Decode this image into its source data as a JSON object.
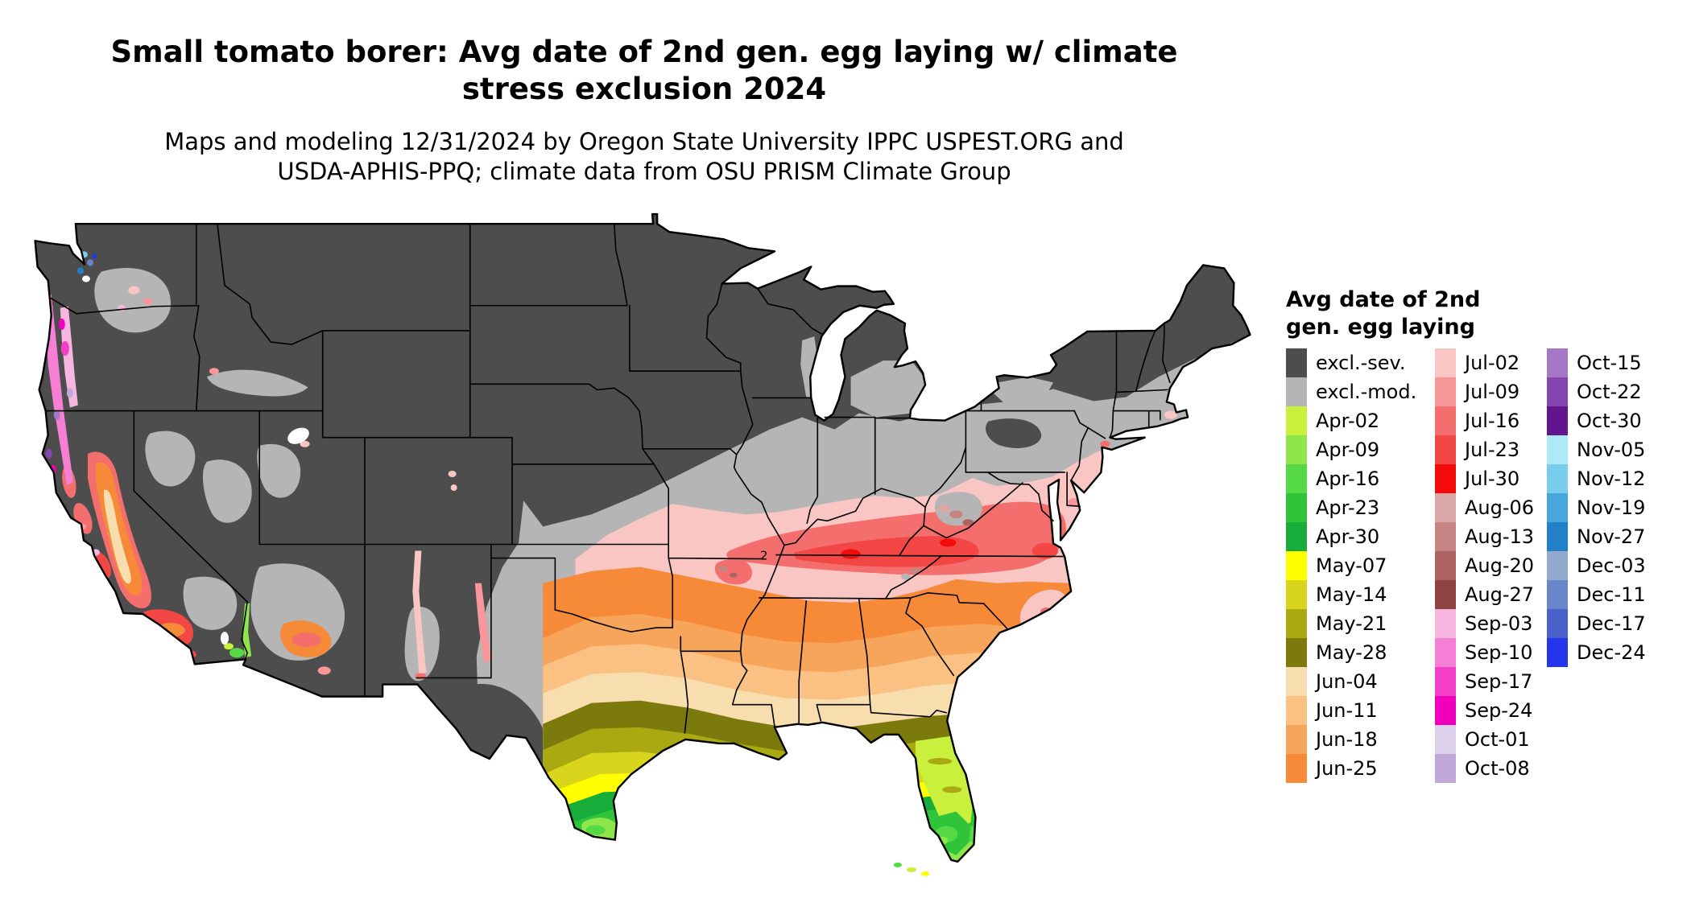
{
  "header": {
    "title_line1": "Small tomato borer: Avg date of 2nd gen. egg laying w/ climate",
    "title_line2": "stress exclusion 2024",
    "subtitle_line1": "Maps and modeling 12/31/2024 by Oregon State University IPPC USPEST.ORG and",
    "subtitle_line2": "USDA-APHIS-PPQ; climate data from OSU PRISM Climate Group"
  },
  "legend": {
    "title_line1": "Avg date of 2nd",
    "title_line2": "gen. egg laying",
    "columns": [
      [
        {
          "label": "excl.-sev.",
          "color": "#4d4d4d"
        },
        {
          "label": "excl.-mod.",
          "color": "#b5b5b5"
        },
        {
          "label": "Apr-02",
          "color": "#c8f03c"
        },
        {
          "label": "Apr-09",
          "color": "#8ee64a"
        },
        {
          "label": "Apr-16",
          "color": "#55d944"
        },
        {
          "label": "Apr-23",
          "color": "#30c43a"
        },
        {
          "label": "Apr-30",
          "color": "#18ad3a"
        },
        {
          "label": "May-07",
          "color": "#ffff00"
        },
        {
          "label": "May-14",
          "color": "#d8d51c"
        },
        {
          "label": "May-21",
          "color": "#aaa912"
        },
        {
          "label": "May-28",
          "color": "#7c7a0c"
        },
        {
          "label": "Jun-04",
          "color": "#f8deae"
        },
        {
          "label": "Jun-11",
          "color": "#fac183"
        },
        {
          "label": "Jun-18",
          "color": "#f8a55c"
        },
        {
          "label": "Jun-25",
          "color": "#f68a38"
        }
      ],
      [
        {
          "label": "Jul-02",
          "color": "#f9c6c3"
        },
        {
          "label": "Jul-09",
          "color": "#f79799"
        },
        {
          "label": "Jul-16",
          "color": "#f56e6e"
        },
        {
          "label": "Jul-23",
          "color": "#f24744"
        },
        {
          "label": "Jul-30",
          "color": "#f30b0b"
        },
        {
          "label": "Aug-06",
          "color": "#d9a7a5"
        },
        {
          "label": "Aug-13",
          "color": "#c68483"
        },
        {
          "label": "Aug-20",
          "color": "#ad6361"
        },
        {
          "label": "Aug-27",
          "color": "#8f4341"
        },
        {
          "label": "Sep-03",
          "color": "#f7b6df"
        },
        {
          "label": "Sep-10",
          "color": "#f47fd4"
        },
        {
          "label": "Sep-17",
          "color": "#f23fc6"
        },
        {
          "label": "Sep-24",
          "color": "#f000bc"
        },
        {
          "label": "Oct-01",
          "color": "#dcd0ea"
        },
        {
          "label": "Oct-08",
          "color": "#c1a6d8"
        }
      ],
      [
        {
          "label": "Oct-15",
          "color": "#a478c6"
        },
        {
          "label": "Oct-22",
          "color": "#8446ae"
        },
        {
          "label": "Oct-30",
          "color": "#63148f"
        },
        {
          "label": "Nov-05",
          "color": "#aceaf8"
        },
        {
          "label": "Nov-12",
          "color": "#79cdec"
        },
        {
          "label": "Nov-19",
          "color": "#47a7dc"
        },
        {
          "label": "Nov-27",
          "color": "#2280c8"
        },
        {
          "label": "Dec-03",
          "color": "#93a9cd"
        },
        {
          "label": "Dec-11",
          "color": "#6a86ca"
        },
        {
          "label": "Dec-17",
          "color": "#4b5fc9"
        },
        {
          "label": "Dec-24",
          "color": "#2336ec"
        }
      ]
    ]
  },
  "map": {
    "annotation_label": "2"
  }
}
